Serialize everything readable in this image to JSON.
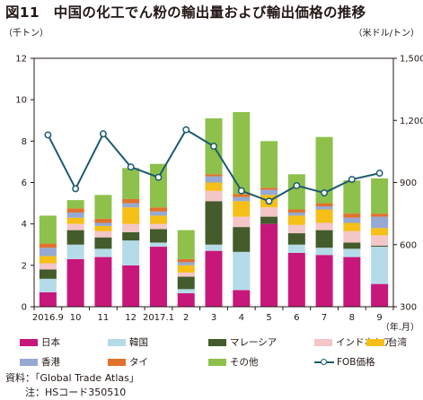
{
  "figure": {
    "title": "図11　中国の化工でん粉の輸出量および輸出価格の推移",
    "source_note": "資料：「Global Trade Atlas」",
    "footnote": "注：HSコード350510"
  },
  "chart_data": {
    "type": "bar",
    "stacked": true,
    "left_axis_unit": "（千トン）",
    "right_axis_unit": "（米ドル/トン）",
    "x_axis_unit": "（年.月）",
    "categories": [
      "2016.9",
      "10",
      "11",
      "12",
      "2017.1",
      "2",
      "3",
      "4",
      "5",
      "6",
      "7",
      "8",
      "9"
    ],
    "ylim_left": [
      0,
      12
    ],
    "yticks_left": [
      "0",
      "2",
      "4",
      "6",
      "8",
      "10",
      "12"
    ],
    "ylim_right": [
      300,
      1500
    ],
    "yticks_right": [
      "300",
      "600",
      "900",
      "1,200",
      "1,500"
    ],
    "grid": false,
    "series": [
      {
        "name": "日本",
        "color": "#c8177a",
        "values": [
          0.7,
          2.3,
          2.4,
          2.0,
          2.9,
          0.65,
          2.7,
          0.8,
          4.0,
          2.6,
          2.5,
          2.4,
          1.1
        ]
      },
      {
        "name": "韓国",
        "color": "#b5dbe8",
        "values": [
          0.65,
          0.7,
          0.4,
          1.2,
          0.2,
          0.2,
          0.3,
          1.85,
          0.0,
          0.4,
          0.35,
          0.4,
          1.8
        ]
      },
      {
        "name": "マレーシア",
        "color": "#445b2c",
        "values": [
          0.45,
          0.7,
          0.55,
          0.4,
          0.65,
          0.6,
          2.1,
          1.2,
          0.35,
          0.55,
          0.85,
          0.3,
          0.05
        ]
      },
      {
        "name": "インドネシア",
        "color": "#f3c6c8",
        "values": [
          0.3,
          0.3,
          0.3,
          0.4,
          0.25,
          0.2,
          0.5,
          0.5,
          0.45,
          0.4,
          0.35,
          0.55,
          0.5
        ]
      },
      {
        "name": "台湾",
        "color": "#f5bf17",
        "values": [
          0.35,
          0.3,
          0.25,
          0.8,
          0.4,
          0.35,
          0.4,
          0.75,
          0.6,
          0.45,
          0.65,
          0.4,
          0.35
        ]
      },
      {
        "name": "香港",
        "color": "#95a9d3",
        "values": [
          0.4,
          0.25,
          0.15,
          0.2,
          0.2,
          0.15,
          0.3,
          0.2,
          0.25,
          0.15,
          0.15,
          0.25,
          0.55
        ]
      },
      {
        "name": "タイ",
        "color": "#e0722c",
        "values": [
          0.2,
          0.2,
          0.2,
          0.2,
          0.2,
          0.15,
          0.1,
          0.15,
          0.1,
          0.15,
          0.15,
          0.2,
          0.15
        ]
      },
      {
        "name": "その他",
        "color": "#8dc14c",
        "values": [
          1.35,
          0.4,
          1.15,
          1.5,
          2.1,
          1.4,
          2.7,
          3.95,
          2.25,
          1.7,
          3.2,
          1.6,
          1.7
        ]
      }
    ],
    "line": {
      "name": "FOB価格",
      "color": "#1d5a6e",
      "axis": "right",
      "values": [
        1130,
        870,
        1135,
        975,
        925,
        1155,
        1075,
        860,
        810,
        885,
        850,
        915,
        945
      ]
    }
  }
}
